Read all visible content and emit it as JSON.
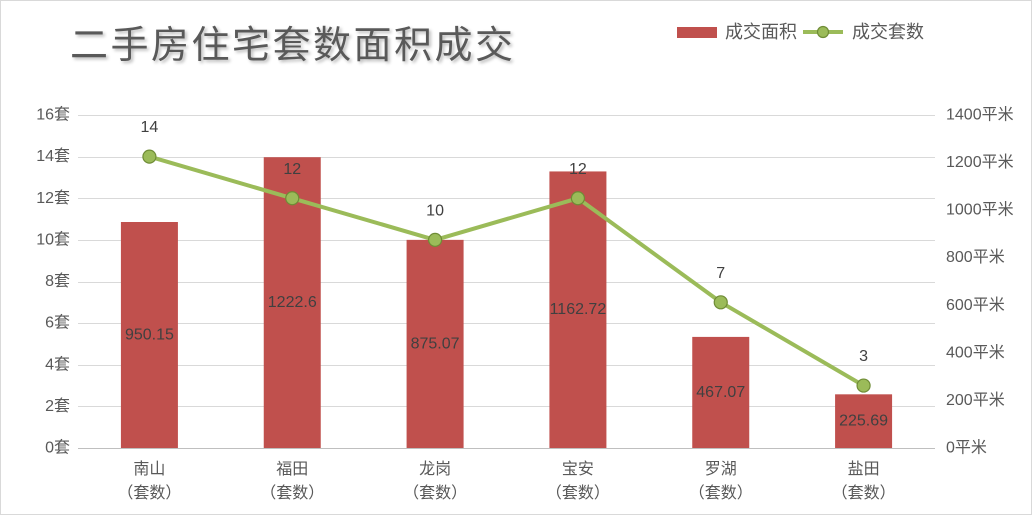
{
  "chart_data": {
    "type": "bar",
    "title": "二手房住宅套数面积成交",
    "categories": [
      "南山\n（套数）",
      "福田\n（套数）",
      "龙岗\n（套数）",
      "宝安\n（套数）",
      "罗湖\n（套数）",
      "盐田\n（套数）"
    ],
    "series": [
      {
        "name": "成交面积",
        "type": "bar",
        "axis": "right",
        "values": [
          950.15,
          1222.6,
          875.07,
          1162.72,
          467.07,
          225.69
        ],
        "color": "#c0504d"
      },
      {
        "name": "成交套数",
        "type": "line",
        "axis": "left",
        "values": [
          14,
          12,
          10,
          12,
          7,
          3
        ],
        "color": "#9bbb59"
      }
    ],
    "y_left": {
      "range": [
        0,
        16
      ],
      "step": 2,
      "tick_labels": [
        "0套",
        "2套",
        "4套",
        "6套",
        "8套",
        "10套",
        "12套",
        "14套",
        "16套"
      ]
    },
    "y_right": {
      "range": [
        0,
        1400
      ],
      "step": 200,
      "tick_labels": [
        "0平米",
        "200平米",
        "400平米",
        "600平米",
        "800平米",
        "1000平米",
        "1200平米",
        "1400平米"
      ]
    },
    "grid": "horizontal",
    "legend": "top-right"
  }
}
